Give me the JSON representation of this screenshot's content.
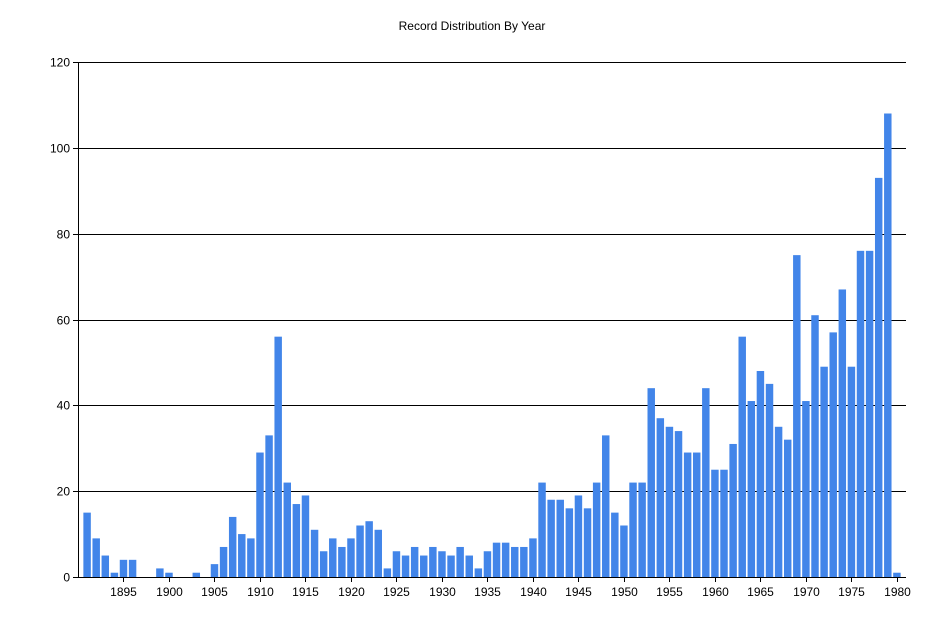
{
  "chart_data": {
    "type": "bar",
    "title": "Record Distribution By Year",
    "xlabel": "",
    "ylabel": "",
    "ylim": [
      0,
      120
    ],
    "yticks": [
      0,
      20,
      40,
      60,
      80,
      100,
      120
    ],
    "xlim": [
      1890,
      1980
    ],
    "xticks": [
      1895,
      1900,
      1905,
      1910,
      1915,
      1920,
      1925,
      1930,
      1935,
      1940,
      1945,
      1950,
      1955,
      1960,
      1965,
      1970,
      1975,
      1980
    ],
    "grid": "horizontal",
    "bar_color": "#4285E9",
    "x": [
      1891,
      1892,
      1893,
      1894,
      1895,
      1896,
      1897,
      1898,
      1899,
      1900,
      1901,
      1902,
      1903,
      1904,
      1905,
      1906,
      1907,
      1908,
      1909,
      1910,
      1911,
      1912,
      1913,
      1914,
      1915,
      1916,
      1917,
      1918,
      1919,
      1920,
      1921,
      1922,
      1923,
      1924,
      1925,
      1926,
      1927,
      1928,
      1929,
      1930,
      1931,
      1932,
      1933,
      1934,
      1935,
      1936,
      1937,
      1938,
      1939,
      1940,
      1941,
      1942,
      1943,
      1944,
      1945,
      1946,
      1947,
      1948,
      1949,
      1950,
      1951,
      1952,
      1953,
      1954,
      1955,
      1956,
      1957,
      1958,
      1959,
      1960,
      1961,
      1962,
      1963,
      1964,
      1965,
      1966,
      1967,
      1968,
      1969,
      1970,
      1971,
      1972,
      1973,
      1974,
      1975,
      1976,
      1977,
      1978,
      1979,
      1980
    ],
    "values": [
      15,
      9,
      5,
      1,
      4,
      4,
      0,
      0,
      2,
      1,
      0,
      0,
      1,
      0,
      3,
      7,
      14,
      10,
      9,
      29,
      33,
      56,
      22,
      17,
      19,
      11,
      6,
      9,
      7,
      9,
      12,
      13,
      11,
      2,
      6,
      5,
      7,
      5,
      7,
      6,
      5,
      7,
      5,
      2,
      6,
      8,
      8,
      7,
      7,
      9,
      22,
      18,
      18,
      16,
      19,
      16,
      22,
      33,
      15,
      12,
      22,
      22,
      44,
      37,
      35,
      34,
      29,
      29,
      44,
      25,
      25,
      31,
      56,
      41,
      48,
      45,
      35,
      32,
      75,
      41,
      61,
      49,
      57,
      67,
      49,
      76,
      76,
      93,
      108,
      1
    ]
  }
}
